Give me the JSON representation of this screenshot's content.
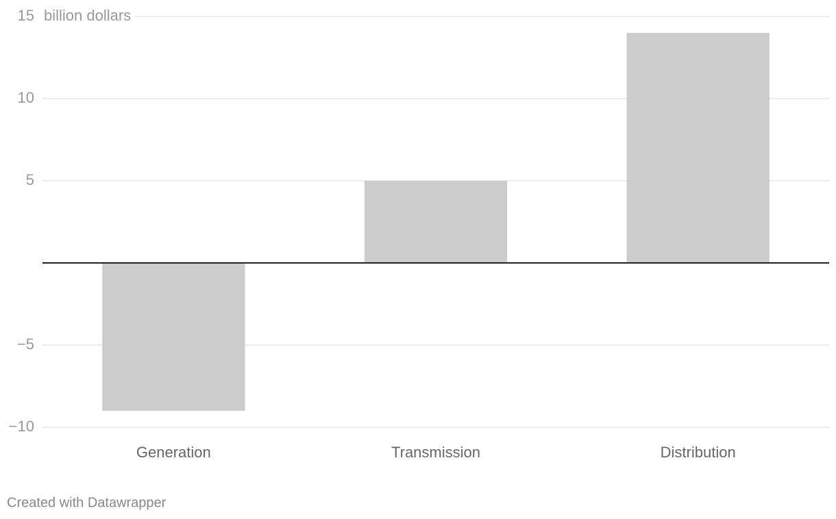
{
  "chart_data": {
    "type": "bar",
    "ylabel": "billion dollars",
    "categories": [
      "Generation",
      "Transmission",
      "Distribution"
    ],
    "values": [
      -9,
      5,
      14
    ],
    "color": "#cccccc",
    "ylim": [
      -10,
      15
    ],
    "yticks": [
      {
        "value": -10,
        "label": "−10"
      },
      {
        "value": -5,
        "label": "−5"
      },
      5,
      10,
      15
    ],
    "grid": true,
    "credit": "Created with Datawrapper"
  }
}
